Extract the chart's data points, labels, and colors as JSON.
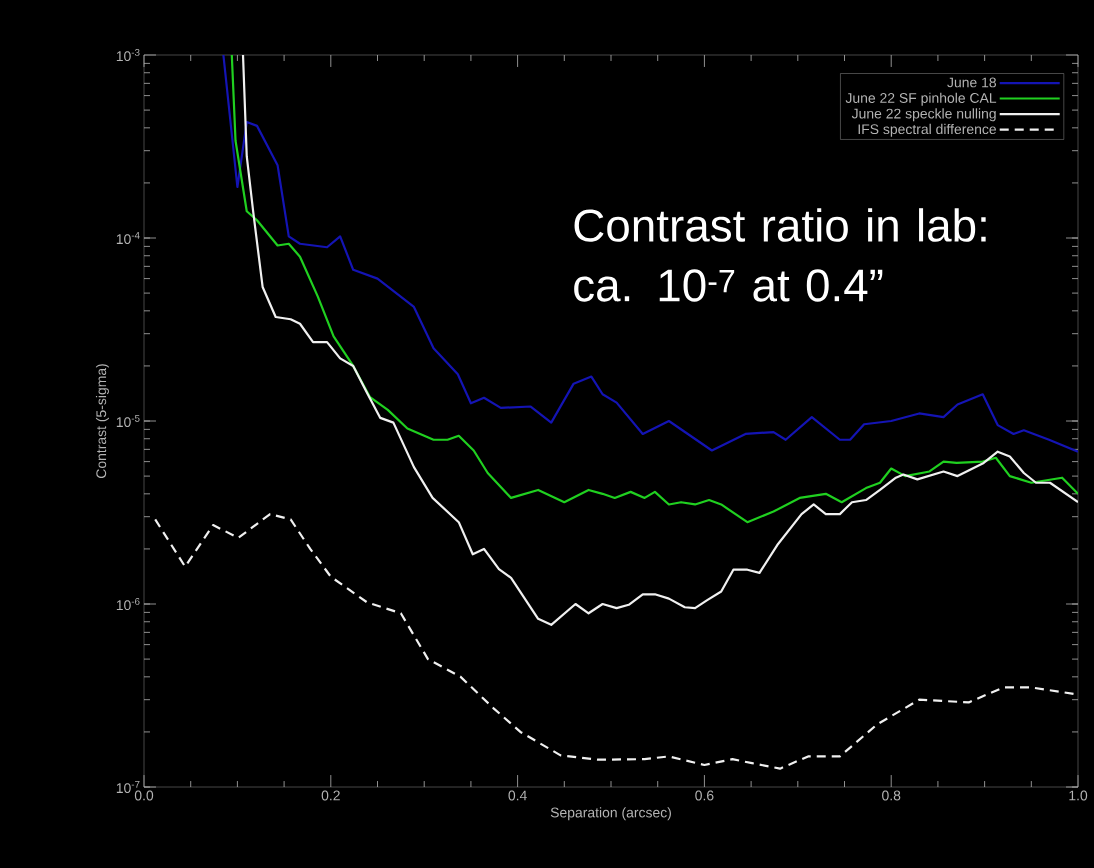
{
  "chart_data": {
    "type": "line",
    "xlabel": "Separation (arcsec)",
    "ylabel": "Contrast (5-sigma)",
    "annotations": [
      "Contrast ratio in lab: ca. 10$^{-7}$ at 0.4”"
    ],
    "xlim": [
      0,
      1
    ],
    "ylim": [
      1e-07,
      0.001
    ],
    "log": "y",
    "xticks": [
      {
        "value": 0,
        "label": "0.0"
      },
      {
        "value": 0.2,
        "label": "0.2"
      },
      {
        "value": 0.4,
        "label": "0.4"
      },
      {
        "value": 0.6,
        "label": "0.6"
      },
      {
        "value": 0.8,
        "label": "0.8"
      },
      {
        "value": 1.0,
        "label": "1.0"
      }
    ],
    "yticks": [
      {
        "value": 1e-07,
        "label": "10$^{-7}$"
      },
      {
        "value": 1e-06,
        "label": "10$^{-6}$"
      },
      {
        "value": 1e-05,
        "label": "10$^{-5}$"
      },
      {
        "value": 0.0001,
        "label": "10$^{-4}$"
      },
      {
        "value": 0.001,
        "label": "10$^{-3}$"
      }
    ],
    "legend": "top right",
    "series": [
      {
        "name": "June 18",
        "color": "#1414b4",
        "line_style": "solid",
        "x": [
          0.085,
          0.1,
          0.11,
          0.121,
          0.143,
          0.155,
          0.167,
          0.196,
          0.21,
          0.224,
          0.25,
          0.289,
          0.31,
          0.336,
          0.35,
          0.364,
          0.382,
          0.414,
          0.436,
          0.46,
          0.479,
          0.491,
          0.506,
          0.534,
          0.562,
          0.608,
          0.644,
          0.674,
          0.687,
          0.715,
          0.745,
          0.756,
          0.771,
          0.8,
          0.83,
          0.856,
          0.871,
          0.898,
          0.914,
          0.931,
          0.942,
          0.969,
          1.0
        ],
        "values": [
          0.001,
          0.00019,
          0.00043,
          0.00041,
          0.00025,
          0.000102,
          9.3e-05,
          8.9e-05,
          0.000102,
          6.7e-05,
          6e-05,
          4.2e-05,
          2.5e-05,
          1.8e-05,
          1.25e-05,
          1.34e-05,
          1.18e-05,
          1.2e-05,
          9.8e-06,
          1.6e-05,
          1.75e-05,
          1.4e-05,
          1.26e-05,
          8.5e-06,
          1e-05,
          6.9e-06,
          8.5e-06,
          8.7e-06,
          7.9e-06,
          1.05e-05,
          7.9e-06,
          7.9e-06,
          9.6e-06,
          1e-05,
          1.1e-05,
          1.05e-05,
          1.23e-05,
          1.4e-05,
          9.5e-06,
          8.5e-06,
          8.9e-06,
          7.9e-06,
          6.8e-06
        ]
      },
      {
        "name": "June 22 SF pinhole CAL",
        "color": "#20d020",
        "line_style": "solid",
        "x": [
          0.094,
          0.098,
          0.11,
          0.121,
          0.143,
          0.155,
          0.167,
          0.186,
          0.203,
          0.224,
          0.242,
          0.261,
          0.282,
          0.31,
          0.325,
          0.337,
          0.353,
          0.368,
          0.393,
          0.422,
          0.45,
          0.476,
          0.491,
          0.504,
          0.521,
          0.536,
          0.547,
          0.562,
          0.575,
          0.59,
          0.605,
          0.618,
          0.646,
          0.674,
          0.702,
          0.73,
          0.747,
          0.773,
          0.788,
          0.8,
          0.815,
          0.841,
          0.856,
          0.87,
          0.898,
          0.912,
          0.927,
          0.95,
          0.983,
          1.0
        ],
        "values": [
          0.001,
          0.00034,
          0.00014,
          0.000125,
          9.1e-05,
          9.3e-05,
          7.9e-05,
          4.8e-05,
          2.9e-05,
          2e-05,
          1.35e-05,
          1.15e-05,
          9.1e-06,
          7.9e-06,
          7.9e-06,
          8.3e-06,
          6.9e-06,
          5.2e-06,
          3.8e-06,
          4.2e-06,
          3.6e-06,
          4.2e-06,
          4e-06,
          3.8e-06,
          4.1e-06,
          3.8e-06,
          4.1e-06,
          3.5e-06,
          3.6e-06,
          3.5e-06,
          3.7e-06,
          3.5e-06,
          2.8e-06,
          3.2e-06,
          3.8e-06,
          4e-06,
          3.6e-06,
          4.3e-06,
          4.6e-06,
          5.5e-06,
          5e-06,
          5.3e-06,
          6e-06,
          5.9e-06,
          6e-06,
          6.3e-06,
          5e-06,
          4.6e-06,
          4.9e-06,
          4e-06
        ]
      },
      {
        "name": "June 22 speckle nulling",
        "color": "#f0f0f0",
        "line_style": "solid",
        "x": [
          0.106,
          0.11,
          0.117,
          0.127,
          0.141,
          0.157,
          0.167,
          0.181,
          0.196,
          0.21,
          0.224,
          0.239,
          0.253,
          0.267,
          0.289,
          0.309,
          0.337,
          0.352,
          0.364,
          0.38,
          0.393,
          0.422,
          0.436,
          0.462,
          0.476,
          0.491,
          0.506,
          0.519,
          0.534,
          0.547,
          0.562,
          0.579,
          0.59,
          0.603,
          0.618,
          0.631,
          0.646,
          0.659,
          0.678,
          0.704,
          0.717,
          0.73,
          0.745,
          0.758,
          0.773,
          0.788,
          0.805,
          0.813,
          0.828,
          0.856,
          0.871,
          0.899,
          0.914,
          0.927,
          0.942,
          0.955,
          0.97,
          1.0
        ],
        "values": [
          0.001,
          0.00028,
          0.000138,
          5.4e-05,
          3.7e-05,
          3.6e-05,
          3.4e-05,
          2.7e-05,
          2.7e-05,
          2.2e-05,
          2e-05,
          1.42e-05,
          1.04e-05,
          9.8e-06,
          5.6e-06,
          3.8e-06,
          2.8e-06,
          1.87e-06,
          2e-06,
          1.55e-06,
          1.39e-06,
          8.3e-07,
          7.7e-07,
          1e-06,
          8.9e-07,
          1e-06,
          9.5e-07,
          9.9e-07,
          1.13e-06,
          1.13e-06,
          1.07e-06,
          9.6e-07,
          9.5e-07,
          1.05e-06,
          1.17e-06,
          1.54e-06,
          1.54e-06,
          1.48e-06,
          2.1e-06,
          3.1e-06,
          3.5e-06,
          3.1e-06,
          3.1e-06,
          3.6e-06,
          3.7e-06,
          4.2e-06,
          4.9e-06,
          5.1e-06,
          4.8e-06,
          5.3e-06,
          5e-06,
          5.9e-06,
          6.8e-06,
          6.4e-06,
          5.2e-06,
          4.6e-06,
          4.6e-06,
          3.6e-06
        ]
      },
      {
        "name": "IFS spectral difference",
        "color": "#f0f0f0",
        "line_style": "dashed",
        "x": [
          0.012,
          0.044,
          0.074,
          0.101,
          0.135,
          0.157,
          0.178,
          0.2,
          0.239,
          0.275,
          0.304,
          0.339,
          0.374,
          0.403,
          0.446,
          0.486,
          0.536,
          0.562,
          0.6,
          0.63,
          0.651,
          0.681,
          0.711,
          0.745,
          0.785,
          0.83,
          0.883,
          0.92,
          0.95,
          1.0
        ],
        "values": [
          2.9e-06,
          1.6e-06,
          2.7e-06,
          2.3e-06,
          3.1e-06,
          2.9e-06,
          2e-06,
          1.41e-06,
          1.02e-06,
          8.9e-07,
          5e-07,
          4e-07,
          2.7e-07,
          2e-07,
          1.49e-07,
          1.41e-07,
          1.42e-07,
          1.47e-07,
          1.32e-07,
          1.42e-07,
          1.35e-07,
          1.26e-07,
          1.47e-07,
          1.47e-07,
          2.2e-07,
          3e-07,
          2.9e-07,
          3.5e-07,
          3.5e-07,
          3.2e-07
        ]
      }
    ]
  }
}
